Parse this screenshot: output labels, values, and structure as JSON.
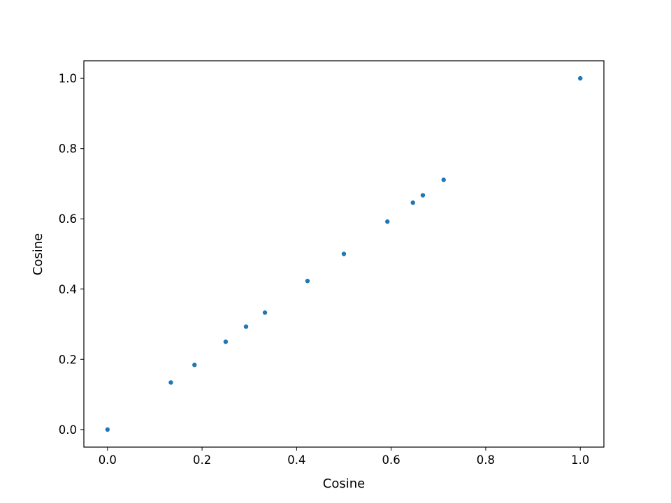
{
  "chart_data": {
    "type": "scatter",
    "title": "",
    "xlabel": "Cosine",
    "ylabel": "Cosine",
    "xlim": [
      -0.05,
      1.05
    ],
    "ylim": [
      -0.05,
      1.05
    ],
    "xticks": [
      0.0,
      0.2,
      0.4,
      0.6,
      0.8,
      1.0
    ],
    "yticks": [
      0.0,
      0.2,
      0.4,
      0.6,
      0.8,
      1.0
    ],
    "xtick_labels": [
      "0.0",
      "0.2",
      "0.4",
      "0.6",
      "0.8",
      "1.0"
    ],
    "ytick_labels": [
      "0.0",
      "0.2",
      "0.4",
      "0.6",
      "0.8",
      "1.0"
    ],
    "grid": false,
    "legend": "none",
    "marker_color": "#1f77b4",
    "series": [
      {
        "points": [
          [
            0.0,
            0.0
          ],
          [
            0.134,
            0.134
          ],
          [
            0.184,
            0.184
          ],
          [
            0.25,
            0.25
          ],
          [
            0.293,
            0.293
          ],
          [
            0.333,
            0.333
          ],
          [
            0.423,
            0.423
          ],
          [
            0.5,
            0.5
          ],
          [
            0.592,
            0.592
          ],
          [
            0.646,
            0.646
          ],
          [
            0.667,
            0.667
          ],
          [
            0.711,
            0.711
          ],
          [
            1.0,
            1.0
          ]
        ]
      }
    ]
  }
}
